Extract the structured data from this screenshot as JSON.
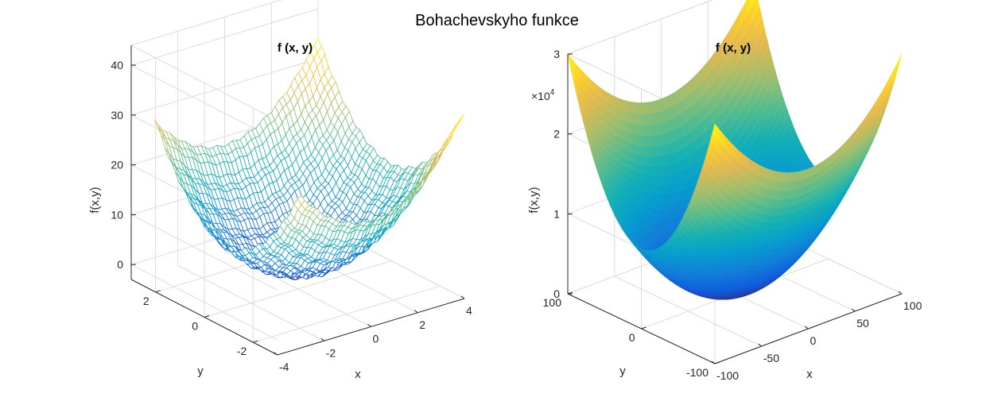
{
  "figure": {
    "suptitle": "Bohachevskyho funkce"
  },
  "chart_data": [
    {
      "type": "mesh",
      "function": "x^2 + 2y^2 - 0.3cos(3πx) - 0.4cos(4πy) + 0.7",
      "title": "f (x, y)",
      "xlabel": "x",
      "ylabel": "y",
      "zlabel": "f(x,y)",
      "xlim": [
        -4,
        4
      ],
      "ylim": [
        -3,
        3
      ],
      "zlim": [
        -3,
        44
      ],
      "x_data_range": [
        -3,
        4
      ],
      "y_data_range": [
        -3,
        3
      ],
      "xticks": [
        -4,
        -2,
        0,
        2,
        4
      ],
      "yticks": [
        -2,
        0,
        2
      ],
      "zticks": [
        0,
        10,
        20,
        30,
        40
      ],
      "xtick_labels": [
        "-4",
        "-2",
        "0",
        "2",
        "4"
      ],
      "ytick_labels": [
        "-2",
        "0",
        "2"
      ],
      "ztick_labels": [
        "0",
        "10",
        "20",
        "30",
        "40"
      ],
      "colormap": "parula",
      "grid": true
    },
    {
      "type": "surface",
      "function": "x^2 + 2y^2 - 0.3cos(3πx) - 0.4cos(4πy) + 0.7",
      "title": "f (x, y)",
      "xlabel": "x",
      "ylabel": "y",
      "zlabel": "f(x,y)",
      "xlim": [
        -100,
        100
      ],
      "ylim": [
        -100,
        100
      ],
      "zlim": [
        0,
        30000
      ],
      "xticks": [
        -100,
        -50,
        0,
        50,
        100
      ],
      "yticks": [
        -100,
        0,
        100
      ],
      "zticks": [
        0,
        10000,
        20000,
        30000
      ],
      "xtick_labels": [
        "-100",
        "-50",
        "0",
        "50",
        "100"
      ],
      "ytick_labels": [
        "-100",
        "0",
        "100"
      ],
      "ztick_labels": [
        "0",
        "1",
        "2",
        "3"
      ],
      "zexponent": "×10",
      "zexponent_power": "4",
      "colormap": "parula",
      "grid": true
    }
  ]
}
